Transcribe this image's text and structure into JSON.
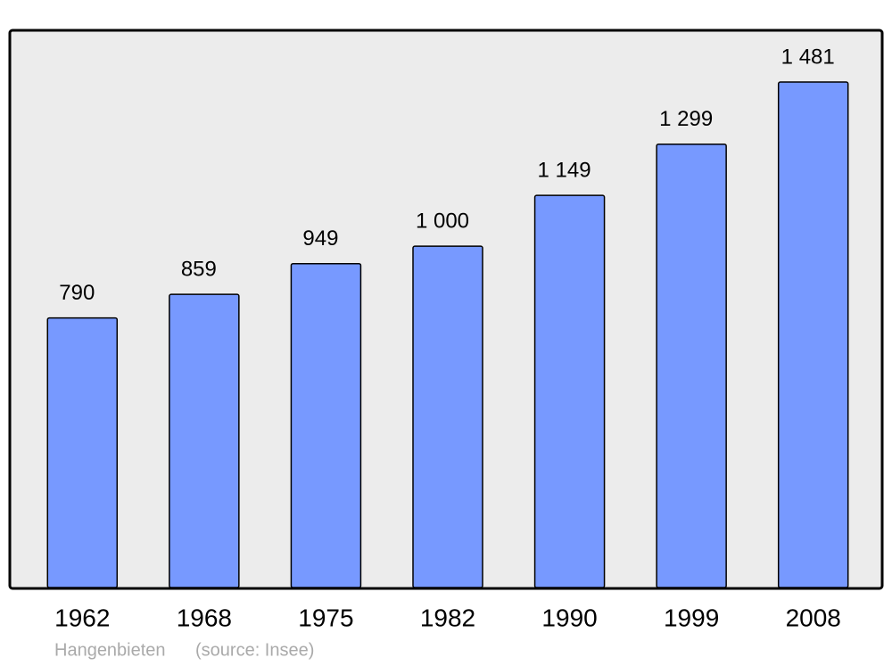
{
  "chart_data": {
    "type": "bar",
    "categories": [
      "1962",
      "1968",
      "1975",
      "1982",
      "1990",
      "1999",
      "2008"
    ],
    "values": [
      790,
      859,
      949,
      1000,
      1149,
      1299,
      1481
    ],
    "value_labels": [
      "790",
      "859",
      "949",
      "1 000",
      "1 149",
      "1 299",
      "1 481"
    ],
    "color": "#7799ff",
    "ylim": [
      0,
      1630
    ],
    "place": "Hangenbieten",
    "source": "(source: Insee)"
  }
}
